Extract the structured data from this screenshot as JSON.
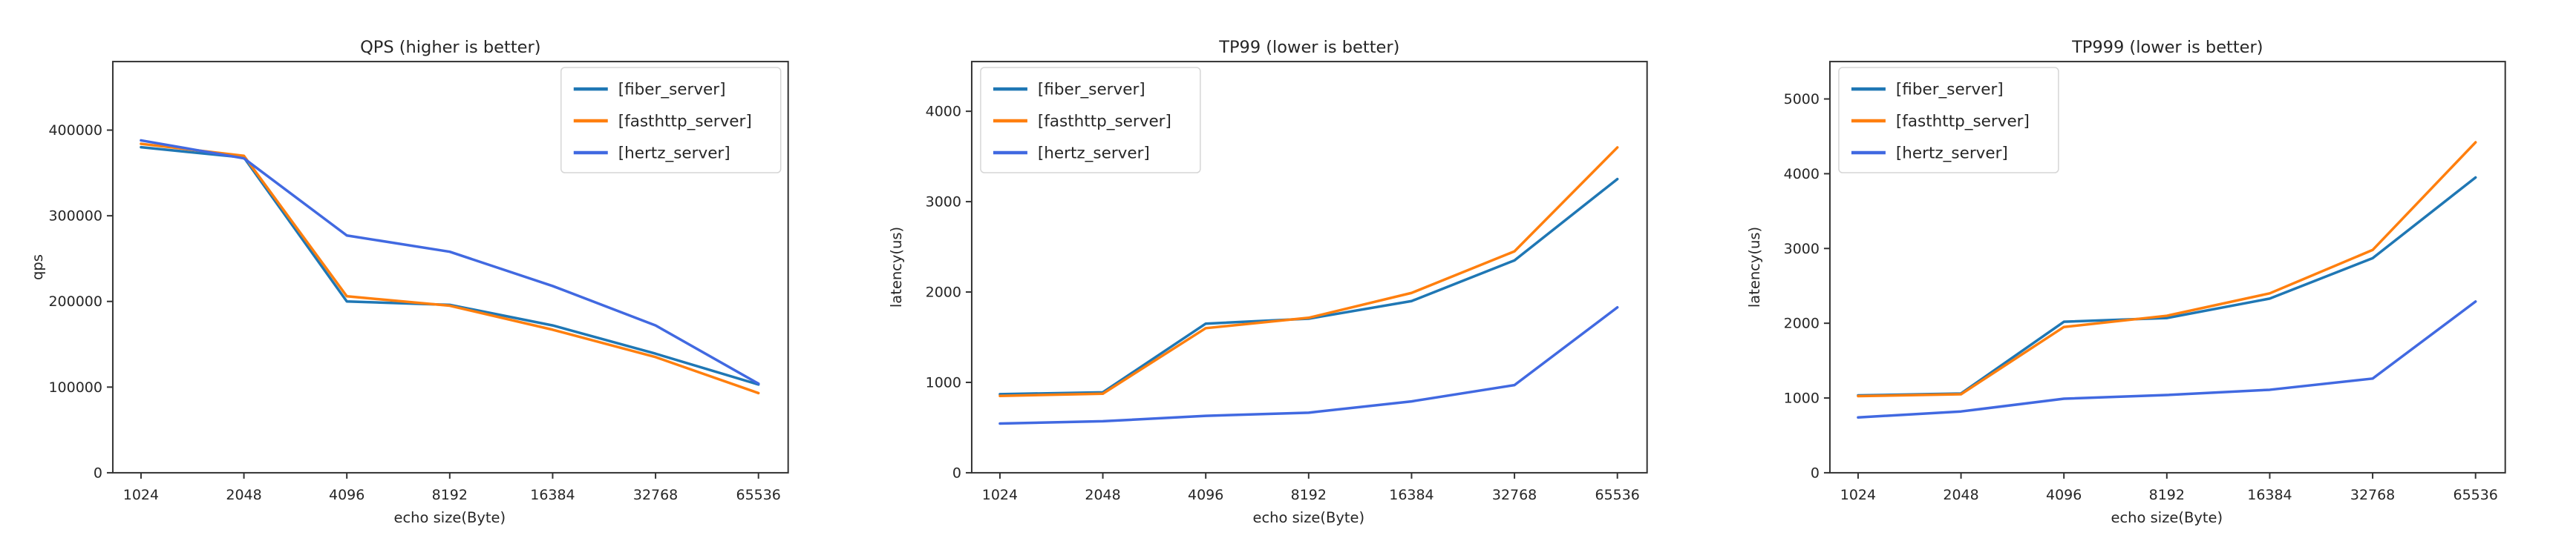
{
  "page": {
    "background": "#ffffff",
    "text_color": "#262626",
    "axis_color": "#333333",
    "legend_border_color": "#d6d6d6"
  },
  "chart_data": [
    {
      "type": "line",
      "title": "QPS (higher is better)",
      "xlabel": "echo size(Byte)",
      "ylabel": "qps",
      "categories": [
        "1024",
        "2048",
        "4096",
        "8192",
        "16384",
        "32768",
        "65536"
      ],
      "y_ticks": [
        0,
        100000,
        200000,
        300000,
        400000
      ],
      "ylim": [
        0,
        480000
      ],
      "grid": false,
      "legend_position": "upper-right",
      "series": [
        {
          "name": "[fiber_server]",
          "color": "#1f77b4",
          "values": [
            380000,
            368000,
            200000,
            196000,
            172000,
            139000,
            103000
          ]
        },
        {
          "name": "[fasthttp_server]",
          "color": "#ff7f0e",
          "values": [
            384000,
            370000,
            206000,
            195000,
            167000,
            135000,
            93000
          ]
        },
        {
          "name": "[hertz_server]",
          "color": "#4169e1",
          "values": [
            388000,
            367000,
            277000,
            258000,
            218000,
            172000,
            104000
          ]
        }
      ]
    },
    {
      "type": "line",
      "title": "TP99 (lower is better)",
      "xlabel": "echo size(Byte)",
      "ylabel": "latency(us)",
      "categories": [
        "1024",
        "2048",
        "4096",
        "8192",
        "16384",
        "32768",
        "65536"
      ],
      "y_ticks": [
        0,
        1000,
        2000,
        3000,
        4000
      ],
      "ylim": [
        0,
        4550
      ],
      "grid": false,
      "legend_position": "upper-left",
      "series": [
        {
          "name": "[fiber_server]",
          "color": "#1f77b4",
          "values": [
            870,
            890,
            1650,
            1705,
            1900,
            2350,
            3250
          ]
        },
        {
          "name": "[fasthttp_server]",
          "color": "#ff7f0e",
          "values": [
            850,
            875,
            1600,
            1715,
            1990,
            2450,
            3600
          ]
        },
        {
          "name": "[hertz_server]",
          "color": "#4169e1",
          "values": [
            545,
            570,
            630,
            665,
            790,
            970,
            1830
          ]
        }
      ]
    },
    {
      "type": "line",
      "title": "TP999 (lower is better)",
      "xlabel": "echo size(Byte)",
      "ylabel": "latency(us)",
      "categories": [
        "1024",
        "2048",
        "4096",
        "8192",
        "16384",
        "32768",
        "65536"
      ],
      "y_ticks": [
        0,
        1000,
        2000,
        3000,
        4000,
        5000
      ],
      "ylim": [
        0,
        5500
      ],
      "grid": false,
      "legend_position": "upper-left",
      "series": [
        {
          "name": "[fiber_server]",
          "color": "#1f77b4",
          "values": [
            1035,
            1060,
            2020,
            2070,
            2330,
            2870,
            3950
          ]
        },
        {
          "name": "[fasthttp_server]",
          "color": "#ff7f0e",
          "values": [
            1025,
            1050,
            1950,
            2100,
            2400,
            2980,
            4420
          ]
        },
        {
          "name": "[hertz_server]",
          "color": "#4169e1",
          "values": [
            740,
            820,
            990,
            1040,
            1110,
            1260,
            2290
          ]
        }
      ]
    }
  ]
}
